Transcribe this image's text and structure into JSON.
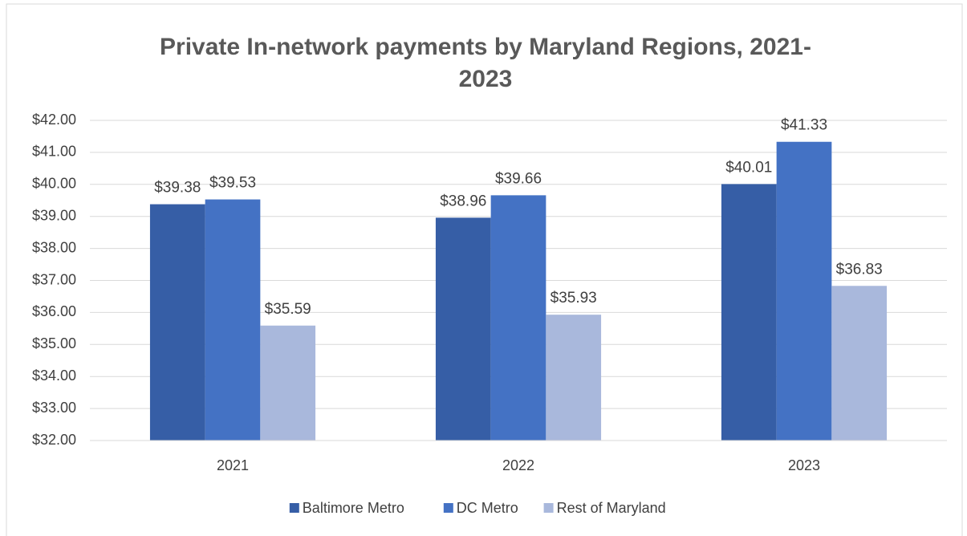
{
  "chart_data": {
    "type": "bar",
    "title": [
      "Private In-network payments by Maryland Regions, 2021-",
      "2023"
    ],
    "categories": [
      "2021",
      "2022",
      "2023"
    ],
    "series": [
      {
        "name": "Baltimore Metro",
        "color": "#365ea6",
        "values": [
          39.38,
          38.96,
          40.01
        ],
        "value_labels": [
          "$39.38",
          "$38.96",
          "$40.01"
        ]
      },
      {
        "name": "DC Metro",
        "color": "#4472c4",
        "values": [
          39.53,
          39.66,
          41.33
        ],
        "value_labels": [
          "$39.53",
          "$39.66",
          "$41.33"
        ]
      },
      {
        "name": "Rest of Maryland",
        "color": "#a9b8dc",
        "values": [
          35.59,
          35.93,
          36.83
        ],
        "value_labels": [
          "$35.59",
          "$35.93",
          "$36.83"
        ]
      }
    ],
    "ylim": [
      32,
      42
    ],
    "yticks": [
      {
        "value": 32,
        "label": "$32.00"
      },
      {
        "value": 33,
        "label": "$33.00"
      },
      {
        "value": 34,
        "label": "$34.00"
      },
      {
        "value": 35,
        "label": "$35.00"
      },
      {
        "value": 36,
        "label": "$36.00"
      },
      {
        "value": 37,
        "label": "$37.00"
      },
      {
        "value": 38,
        "label": "$38.00"
      },
      {
        "value": 39,
        "label": "$39.00"
      },
      {
        "value": 40,
        "label": "$40.00"
      },
      {
        "value": 41,
        "label": "$41.00"
      },
      {
        "value": 42,
        "label": "$42.00"
      }
    ],
    "grid": true,
    "legend": "bottom"
  }
}
